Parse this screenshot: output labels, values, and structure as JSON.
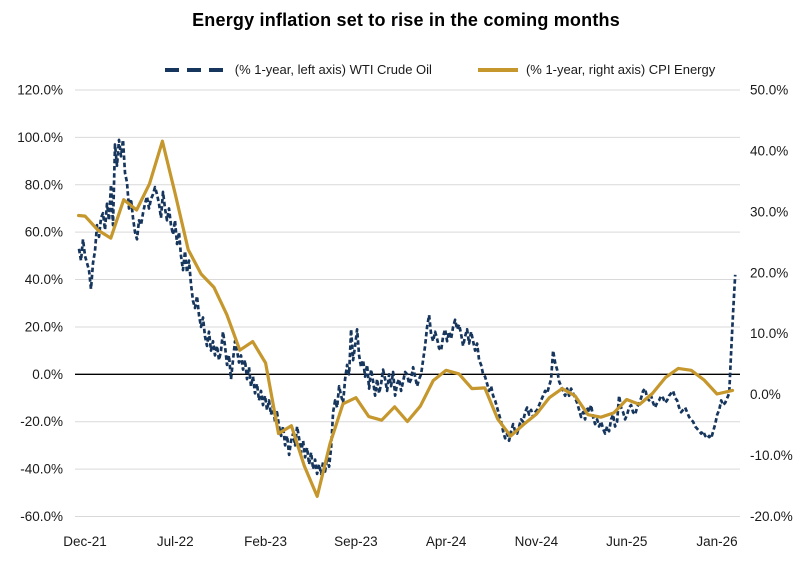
{
  "chart": {
    "title": "Energy inflation set to rise in the coming months",
    "legend": [
      {
        "label": "(% 1-year, left axis) WTI Crude Oil",
        "color": "#17365d",
        "style": "dashed"
      },
      {
        "label": "(% 1-year, right axis) CPI Energy",
        "color": "#c5972c",
        "style": "solid"
      }
    ]
  },
  "chart_data": {
    "type": "line",
    "title": "Energy inflation set to rise in the coming months",
    "grid": true,
    "zero_line_on_left_axis": true,
    "x_axis": {
      "unit": "months since Dec-2021",
      "tick_labels": [
        "Dec-21",
        "Jul-22",
        "Feb-23",
        "Sep-23",
        "Apr-24",
        "Nov-24",
        "Jun-25",
        "Jan-26"
      ],
      "tick_months": [
        0,
        7,
        14,
        21,
        28,
        35,
        42,
        49
      ],
      "range_months": [
        -0.5,
        50.6
      ]
    },
    "left_axis": {
      "tick_labels": [
        "120.0%",
        "100.0%",
        "80.0%",
        "60.0%",
        "40.0%",
        "20.0%",
        "0.0%",
        "-20.0%",
        "-40.0%",
        "-60.0%"
      ],
      "tick_values": [
        120,
        100,
        80,
        60,
        40,
        20,
        0,
        -20,
        -40,
        -60
      ],
      "range": [
        -60,
        120
      ]
    },
    "right_axis": {
      "tick_labels": [
        "50.0%",
        "40.0%",
        "30.0%",
        "20.0%",
        "10.0%",
        "0.0%",
        "-10.0%",
        "-20.0%"
      ],
      "tick_values": [
        50,
        40,
        30,
        20,
        10,
        0,
        -10,
        -20
      ],
      "range": [
        -20,
        50
      ]
    },
    "series": [
      {
        "name": "(% 1-year, left axis) WTI Crude Oil",
        "axis": "left",
        "line_style": "dashed",
        "color": "#17365d",
        "sampling": "regular",
        "start_month": -0.465,
        "step_month": 0.1551,
        "values": [
          53,
          48,
          57,
          50,
          47,
          44,
          36,
          47,
          52,
          63,
          58,
          66,
          68,
          61,
          72,
          65,
          80,
          63,
          97,
          88,
          99,
          92,
          99,
          85,
          81,
          70,
          74,
          66,
          60,
          57,
          65,
          63,
          68,
          72,
          75,
          70,
          74,
          76,
          79,
          76,
          72,
          66,
          77,
          70,
          65,
          70,
          63,
          59,
          65,
          55,
          60,
          50,
          44,
          52,
          43,
          48,
          38,
          31,
          28,
          33,
          25,
          20,
          24,
          16,
          12,
          18,
          10,
          14,
          8,
          12,
          6,
          10,
          18,
          12,
          4,
          8,
          -2,
          6,
          14,
          10,
          5,
          8,
          2,
          6,
          -2,
          3,
          -5,
          -1,
          -8,
          -4,
          -11,
          -7,
          -13,
          -9,
          -15,
          -11,
          -17,
          -13,
          -20,
          -16,
          -22,
          -26,
          -22,
          -30,
          -26,
          -34,
          -28,
          -25,
          -30,
          -22,
          -27,
          -33,
          -28,
          -35,
          -31,
          -38,
          -33,
          -40,
          -36,
          -42,
          -38,
          -42,
          -37,
          -41,
          -35,
          -39,
          -31,
          -16,
          -11,
          -14,
          -5,
          -9,
          -12,
          -2,
          4,
          0,
          19,
          6,
          12,
          19,
          8,
          3,
          6,
          -1,
          4,
          -6,
          2,
          -3,
          -9,
          -2,
          -8,
          -4,
          2,
          -2,
          -7,
          0,
          -5,
          1,
          -9,
          -4,
          -2,
          -7,
          -3,
          1,
          0,
          -4,
          -2,
          3,
          -1,
          -5,
          -2,
          0,
          6,
          12,
          20,
          25,
          17,
          14,
          18,
          15,
          11,
          10,
          16,
          19,
          14,
          18,
          15,
          20,
          23,
          19,
          21,
          17,
          12,
          16,
          19,
          13,
          18,
          14,
          10,
          13,
          6,
          4,
          0,
          -1,
          -4,
          -7,
          -5,
          -9,
          -11,
          -14,
          -17,
          -20,
          -24,
          -27,
          -25,
          -28,
          -24,
          -21,
          -24,
          -25,
          -22,
          -19,
          -20,
          -16,
          -14,
          -17,
          -15,
          -18,
          -16,
          -15,
          -13,
          -11,
          -9,
          -7,
          -8,
          -5,
          -2,
          10,
          5,
          2,
          -3,
          -5,
          -7,
          -9,
          -6,
          -9,
          -6,
          -8,
          -10,
          -12,
          -15,
          -18,
          -16,
          -19,
          -14,
          -16,
          -13,
          -18,
          -21,
          -19,
          -22,
          -20,
          -23,
          -25,
          -22,
          -24,
          -19,
          -17,
          -22,
          -20,
          -9,
          -14,
          -16,
          -19,
          -17,
          -14,
          -13,
          -16,
          -17,
          -14,
          -12,
          -10,
          -7,
          -6,
          -10,
          -11,
          -9,
          -12,
          -14,
          -12,
          -11,
          -9,
          -10,
          -12,
          -11,
          -9,
          -8,
          -7,
          -10,
          -11,
          -14,
          -16,
          -15,
          -14,
          -16,
          -18,
          -19,
          -20,
          -22,
          -23,
          -24,
          -25,
          -24,
          -26,
          -27,
          -26,
          -27,
          -24,
          -21,
          -17,
          -15,
          -11,
          -13,
          -12,
          -10,
          -8,
          10,
          27,
          42
        ]
      },
      {
        "name": "(% 1-year, right axis) CPI Energy",
        "axis": "right",
        "line_style": "solid",
        "color": "#c5972c",
        "sampling": "points",
        "points": [
          [
            -0.5,
            29.4
          ],
          [
            0,
            29.3
          ],
          [
            1,
            27.0
          ],
          [
            2,
            25.7
          ],
          [
            3,
            32.0
          ],
          [
            4,
            30.3
          ],
          [
            5,
            34.6
          ],
          [
            6,
            41.6
          ],
          [
            7,
            32.9
          ],
          [
            8,
            23.8
          ],
          [
            9,
            19.8
          ],
          [
            10,
            17.6
          ],
          [
            11,
            13.1
          ],
          [
            12,
            7.3
          ],
          [
            13,
            8.7
          ],
          [
            14,
            5.2
          ],
          [
            15,
            -6.4
          ],
          [
            16,
            -5.1
          ],
          [
            17,
            -11.7
          ],
          [
            18,
            -16.7
          ],
          [
            19,
            -8.0
          ],
          [
            20,
            -1.5
          ],
          [
            21,
            -0.5
          ],
          [
            22,
            -3.6
          ],
          [
            23,
            -4.2
          ],
          [
            24,
            -2.0
          ],
          [
            25,
            -4.4
          ],
          [
            26,
            -1.9
          ],
          [
            27,
            2.3
          ],
          [
            28,
            4.0
          ],
          [
            29,
            3.4
          ],
          [
            30,
            1.0
          ],
          [
            31,
            1.1
          ],
          [
            32,
            -4.0
          ],
          [
            33,
            -6.8
          ],
          [
            34,
            -4.9
          ],
          [
            35,
            -3.2
          ],
          [
            36,
            -0.5
          ],
          [
            37,
            1.0
          ],
          [
            38,
            -0.2
          ],
          [
            39,
            -3.3
          ],
          [
            40,
            -3.7
          ],
          [
            41,
            -3.0
          ],
          [
            42,
            -0.8
          ],
          [
            43,
            -1.6
          ],
          [
            44,
            0.2
          ],
          [
            45,
            2.8
          ],
          [
            46,
            4.3
          ],
          [
            47,
            4.0
          ],
          [
            48,
            2.4
          ],
          [
            49,
            0.1
          ],
          [
            50.2,
            0.7
          ]
        ]
      }
    ]
  }
}
